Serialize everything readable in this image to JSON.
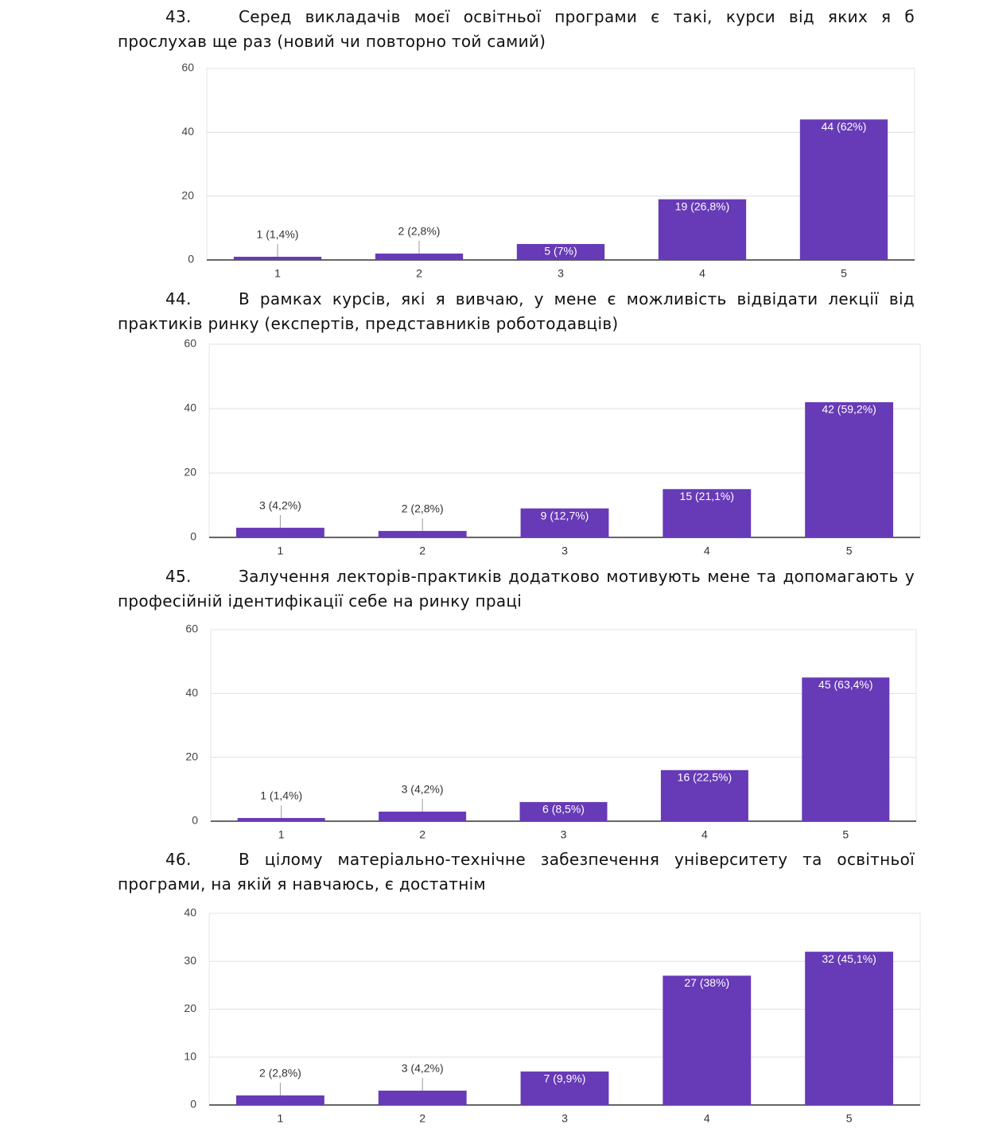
{
  "questions": [
    {
      "number": "43.",
      "text": "Серед викладачів моєї освітньої програми є такі, курси від яких я б прослухав ще раз (новий чи повторно той самий)"
    },
    {
      "number": "44.",
      "text": "В рамках курсів, які я вивчаю, у мене є можливість відвідати лекції від практиків ринку (експертів, представників роботодавців)"
    },
    {
      "number": "45.",
      "text": "Залучення лекторів-практиків додатково мотивують мене та допомагають у професійній ідентифікації себе на ринку праці"
    },
    {
      "number": "46.",
      "text": "В цілому матеріально-технічне забезпечення університету та освітньої програми, на якій я навчаюсь, є достатнім"
    }
  ],
  "chart_data": [
    {
      "type": "bar",
      "categories": [
        "1",
        "2",
        "3",
        "4",
        "5"
      ],
      "values": [
        1,
        2,
        5,
        19,
        44
      ],
      "value_labels": [
        "1 (1,4%)",
        "2 (2,8%)",
        "5 (7%)",
        "19 (26,8%)",
        "44 (62%)"
      ],
      "color": "#673ab7",
      "ylim": [
        0,
        60
      ],
      "yticks": [
        0,
        20,
        40,
        60
      ],
      "grid": true
    },
    {
      "type": "bar",
      "categories": [
        "1",
        "2",
        "3",
        "4",
        "5"
      ],
      "values": [
        3,
        2,
        9,
        15,
        42
      ],
      "value_labels": [
        "3 (4,2%)",
        "2 (2,8%)",
        "9 (12,7%)",
        "15 (21,1%)",
        "42 (59,2%)"
      ],
      "color": "#673ab7",
      "ylim": [
        0,
        60
      ],
      "yticks": [
        0,
        20,
        40,
        60
      ],
      "grid": true
    },
    {
      "type": "bar",
      "categories": [
        "1",
        "2",
        "3",
        "4",
        "5"
      ],
      "values": [
        1,
        3,
        6,
        16,
        45
      ],
      "value_labels": [
        "1 (1,4%)",
        "3 (4,2%)",
        "6 (8,5%)",
        "16 (22,5%)",
        "45 (63,4%)"
      ],
      "color": "#673ab7",
      "ylim": [
        0,
        60
      ],
      "yticks": [
        0,
        20,
        40,
        60
      ],
      "grid": true
    },
    {
      "type": "bar",
      "categories": [
        "1",
        "2",
        "3",
        "4",
        "5"
      ],
      "values": [
        2,
        3,
        7,
        27,
        32
      ],
      "value_labels": [
        "2 (2,8%)",
        "3 (4,2%)",
        "7 (9,9%)",
        "27 (38%)",
        "32 (45,1%)"
      ],
      "color": "#673ab7",
      "ylim": [
        0,
        40
      ],
      "yticks": [
        0,
        10,
        20,
        30,
        40
      ],
      "grid": true
    }
  ]
}
